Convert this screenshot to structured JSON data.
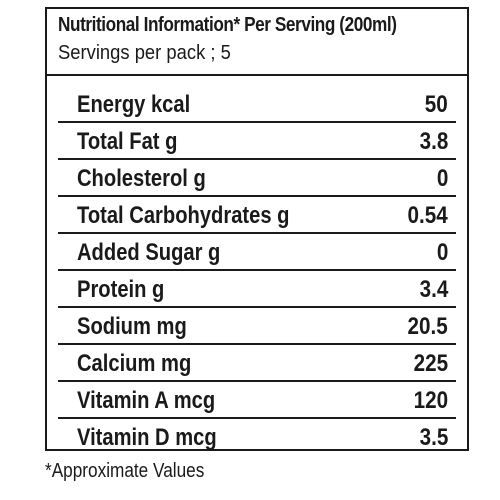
{
  "header": {
    "title": "Nutritional Information* Per Serving (200ml)",
    "subtitle": "Servings per pack ; 5"
  },
  "rows": [
    {
      "label": "Energy kcal",
      "value": "50"
    },
    {
      "label": "Total Fat g",
      "value": "3.8"
    },
    {
      "label": "Cholesterol g",
      "value": "0"
    },
    {
      "label": "Total Carbohydrates g",
      "value": "0.54"
    },
    {
      "label": "Added Sugar g",
      "value": "0"
    },
    {
      "label": "Protein g",
      "value": "3.4"
    },
    {
      "label": "Sodium mg",
      "value": "20.5"
    },
    {
      "label": "Calcium mg",
      "value": "225"
    },
    {
      "label": "Vitamin A mcg",
      "value": "120"
    },
    {
      "label": "Vitamin D mcg",
      "value": "3.5"
    }
  ],
  "footnote": "*Approximate Values"
}
